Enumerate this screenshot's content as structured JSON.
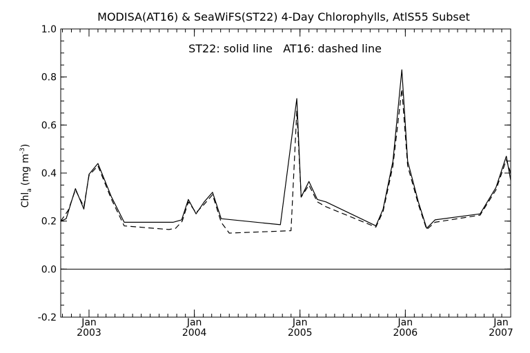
{
  "chart_data": {
    "type": "line",
    "title": "MODISA(AT16) & SeaWiFS(ST22) 4-Day Chlorophylls, AtlS55 Subset",
    "annotation": "ST22: solid line   AT16: dashed line",
    "ylabel_main": "Chl",
    "ylabel_sub": "a",
    "ylabel_units": "(mg m",
    "ylabel_sup": "-3",
    "ylabel_close": ")",
    "xlim": [
      "2002-09-25",
      "2007-01-01"
    ],
    "ylim": [
      -0.2,
      1.0
    ],
    "yticks": [
      {
        "value": -0.2,
        "label": "-0.2"
      },
      {
        "value": 0.0,
        "label": "0.0"
      },
      {
        "value": 0.2,
        "label": "0.2"
      },
      {
        "value": 0.4,
        "label": "0.4"
      },
      {
        "value": 0.6,
        "label": "0.6"
      },
      {
        "value": 0.8,
        "label": "0.8"
      },
      {
        "value": 1.0,
        "label": "1.0"
      }
    ],
    "xticks": [
      {
        "date": "2003-01-01",
        "month": "Jan",
        "year": "2003"
      },
      {
        "date": "2004-01-01",
        "month": "Jan",
        "year": "2004"
      },
      {
        "date": "2005-01-01",
        "month": "Jan",
        "year": "2005"
      },
      {
        "date": "2006-01-01",
        "month": "Jan",
        "year": "2006"
      },
      {
        "date": "2007-01-01",
        "month": "Jan",
        "year": "2007"
      }
    ],
    "zero_line": 0.0,
    "series": [
      {
        "name": "ST22",
        "style": "solid",
        "color": "#000000",
        "x": [
          "2002-09-25",
          "2002-10-14",
          "2002-11-15",
          "2002-12-14",
          "2003-01-01",
          "2003-02-01",
          "2003-03-20",
          "2003-05-03",
          "2003-10-19",
          "2003-11-18",
          "2003-12-11",
          "2004-01-07",
          "2004-02-04",
          "2004-03-04",
          "2004-04-03",
          "2004-10-25",
          "2004-12-21",
          "2005-01-05",
          "2005-02-01",
          "2005-03-02",
          "2005-04-01",
          "2005-09-21",
          "2005-10-16",
          "2005-11-19",
          "2005-12-20",
          "2006-01-09",
          "2006-02-15",
          "2006-03-16",
          "2006-04-14",
          "2006-09-17",
          "2006-11-11",
          "2006-12-17",
          "2007-01-01"
        ],
        "y": [
          0.2,
          0.21,
          0.335,
          0.25,
          0.395,
          0.44,
          0.3,
          0.195,
          0.195,
          0.205,
          0.29,
          0.23,
          0.28,
          0.32,
          0.21,
          0.185,
          0.71,
          0.3,
          0.365,
          0.29,
          0.28,
          0.18,
          0.25,
          0.45,
          0.83,
          0.45,
          0.28,
          0.17,
          0.205,
          0.23,
          0.34,
          0.47,
          0.37
        ]
      },
      {
        "name": "AT16",
        "style": "dashed",
        "color": "#000000",
        "x": [
          "2002-09-25",
          "2002-10-21",
          "2002-11-15",
          "2002-12-14",
          "2003-01-01",
          "2003-02-01",
          "2003-03-20",
          "2003-05-03",
          "2003-10-05",
          "2003-10-28",
          "2003-11-20",
          "2003-12-11",
          "2004-01-07",
          "2004-02-04",
          "2004-03-04",
          "2004-04-03",
          "2004-05-01",
          "2004-12-01",
          "2004-12-21",
          "2005-01-05",
          "2005-02-01",
          "2005-03-02",
          "2005-04-01",
          "2005-09-21",
          "2005-10-16",
          "2005-11-19",
          "2005-12-20",
          "2006-01-09",
          "2006-02-15",
          "2006-03-16",
          "2006-04-14",
          "2006-09-17",
          "2006-11-11",
          "2006-12-17",
          "2007-01-01"
        ],
        "y": [
          0.2,
          0.245,
          0.33,
          0.26,
          0.39,
          0.43,
          0.29,
          0.18,
          0.165,
          0.17,
          0.2,
          0.28,
          0.235,
          0.27,
          0.31,
          0.195,
          0.15,
          0.16,
          0.66,
          0.3,
          0.35,
          0.28,
          0.26,
          0.175,
          0.24,
          0.43,
          0.75,
          0.43,
          0.27,
          0.165,
          0.195,
          0.225,
          0.33,
          0.455,
          0.4
        ]
      }
    ]
  }
}
